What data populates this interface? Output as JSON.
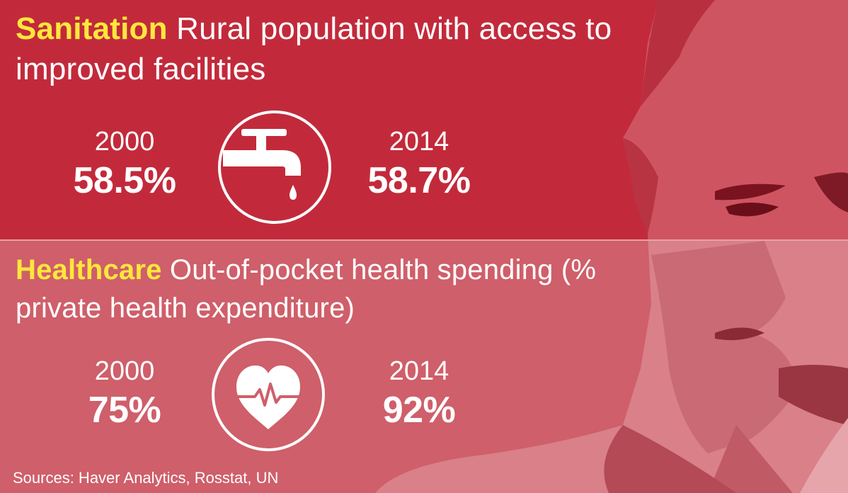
{
  "sanitation": {
    "keyword": "Sanitation",
    "title": "Rural population with access to improved facilities",
    "icon": "water-tap-icon",
    "start": {
      "year": "2000",
      "value": "58.5%"
    },
    "end": {
      "year": "2014",
      "value": "58.7%"
    }
  },
  "healthcare": {
    "keyword": "Healthcare",
    "title": "Out-of-pocket health spending (% private health expenditure)",
    "icon": "heart-pulse-icon",
    "start": {
      "year": "2000",
      "value": "75%"
    },
    "end": {
      "year": "2014",
      "value": "92%"
    }
  },
  "sources": "Sources: Haver Analytics, Rosstat, UN",
  "colors": {
    "top_panel": "#c22a3b",
    "bottom_panel": "#cf5f6a",
    "keyword": "#ffe73c",
    "text": "#ffffff"
  }
}
